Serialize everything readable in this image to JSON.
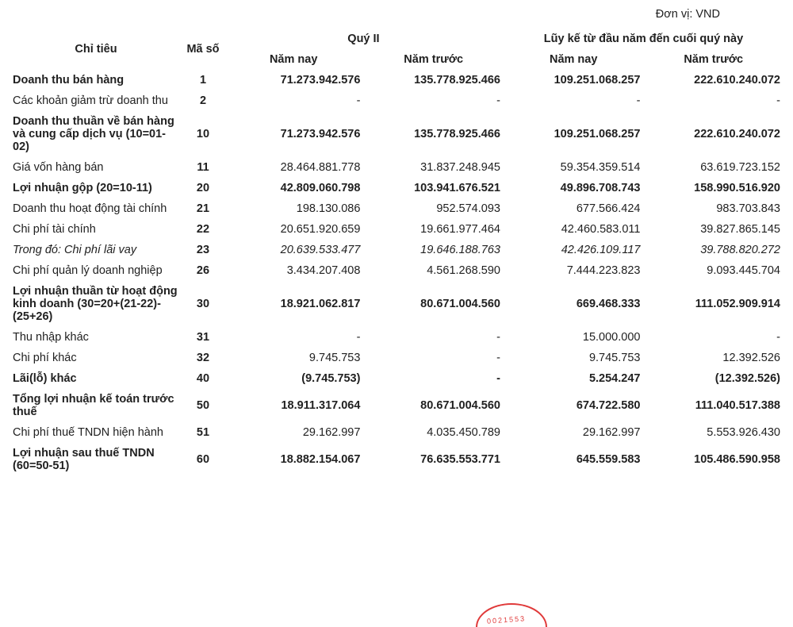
{
  "unit_label": "Đơn vị: VND",
  "headers": {
    "indicator": "Chỉ tiêu",
    "code": "Mã số",
    "group1": "Quý II",
    "group2": "Lũy kế từ đầu năm đến cuối quý này",
    "this_year": "Năm nay",
    "prev_year": "Năm trước"
  },
  "rows": [
    {
      "label": "Doanh thu bán hàng",
      "code": "1",
      "v1": "71.273.942.576",
      "v2": "135.778.925.466",
      "v3": "109.251.068.257",
      "v4": "222.610.240.072",
      "bold": true
    },
    {
      "label": "Các khoản giảm trừ doanh thu",
      "code": "2",
      "v1": "-",
      "v2": "-",
      "v3": "-",
      "v4": "-",
      "bold": false
    },
    {
      "label": "Doanh thu thuần về bán hàng và cung cấp dịch vụ (10=01-02)",
      "code": "10",
      "v1": "71.273.942.576",
      "v2": "135.778.925.466",
      "v3": "109.251.068.257",
      "v4": "222.610.240.072",
      "bold": true
    },
    {
      "label": "Giá vốn hàng bán",
      "code": "11",
      "v1": "28.464.881.778",
      "v2": "31.837.248.945",
      "v3": "59.354.359.514",
      "v4": "63.619.723.152",
      "bold": false
    },
    {
      "label": "Lợi nhuận gộp (20=10-11)",
      "code": "20",
      "v1": "42.809.060.798",
      "v2": "103.941.676.521",
      "v3": "49.896.708.743",
      "v4": "158.990.516.920",
      "bold": true
    },
    {
      "label": "Doanh thu hoạt động tài chính",
      "code": "21",
      "v1": "198.130.086",
      "v2": "952.574.093",
      "v3": "677.566.424",
      "v4": "983.703.843",
      "bold": false
    },
    {
      "label": "Chi phí tài chính",
      "code": "22",
      "v1": "20.651.920.659",
      "v2": "19.661.977.464",
      "v3": "42.460.583.011",
      "v4": "39.827.865.145",
      "bold": false
    },
    {
      "label": "Trong đó: Chi phí lãi vay",
      "code": "23",
      "v1": "20.639.533.477",
      "v2": "19.646.188.763",
      "v3": "42.426.109.117",
      "v4": "39.788.820.272",
      "bold": false,
      "italic": true
    },
    {
      "label": "Chi phí quản lý doanh nghiệp",
      "code": "26",
      "v1": "3.434.207.408",
      "v2": "4.561.268.590",
      "v3": "7.444.223.823",
      "v4": "9.093.445.704",
      "bold": false
    },
    {
      "label": "Lợi nhuận thuần từ hoạt động kinh doanh (30=20+(21-22)-(25+26)",
      "code": "30",
      "v1": "18.921.062.817",
      "v2": "80.671.004.560",
      "v3": "669.468.333",
      "v4": "111.052.909.914",
      "bold": true
    },
    {
      "label": "Thu nhập khác",
      "code": "31",
      "v1": "-",
      "v2": "-",
      "v3": "15.000.000",
      "v4": "-",
      "bold": false
    },
    {
      "label": "Chi phí khác",
      "code": "32",
      "v1": "9.745.753",
      "v2": "-",
      "v3": "9.745.753",
      "v4": "12.392.526",
      "bold": false
    },
    {
      "label": "Lãi(lỗ) khác",
      "code": "40",
      "v1": "(9.745.753)",
      "v2": "-",
      "v3": "5.254.247",
      "v4": "(12.392.526)",
      "bold": true
    },
    {
      "label": "Tổng lợi nhuận kế toán trước thuế",
      "code": "50",
      "v1": "18.911.317.064",
      "v2": "80.671.004.560",
      "v3": "674.722.580",
      "v4": "111.040.517.388",
      "bold": true
    },
    {
      "label": "Chi phí thuế TNDN hiện hành",
      "code": "51",
      "v1": "29.162.997",
      "v2": "4.035.450.789",
      "v3": "29.162.997",
      "v4": "5.553.926.430",
      "bold": false
    },
    {
      "label": "Lợi nhuận sau thuế TNDN (60=50-51)",
      "code": "60",
      "v1": "18.882.154.067",
      "v2": "76.635.553.771",
      "v3": "645.559.583",
      "v4": "105.486.590.958",
      "bold": true
    }
  ],
  "stamp_text": "0021553"
}
